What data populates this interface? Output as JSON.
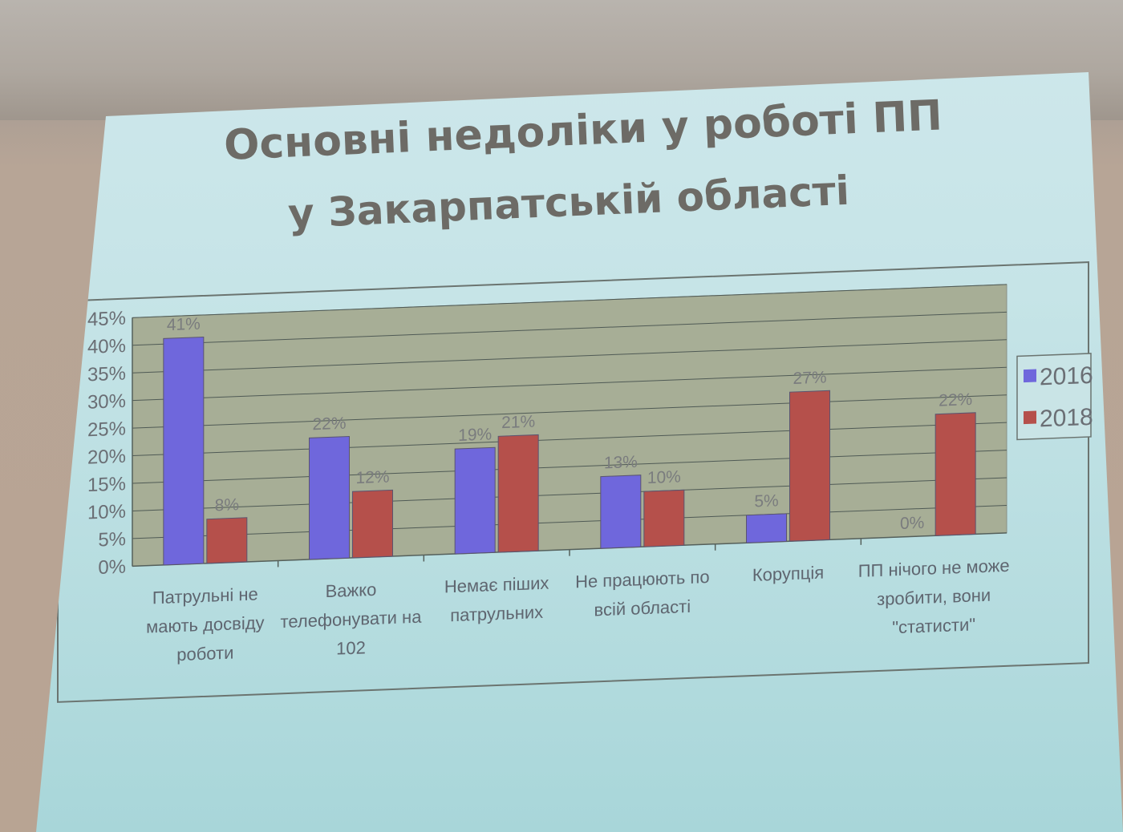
{
  "slide": {
    "title_line1": "Основні недоліки у роботі ПП",
    "title_line2": "у Закарпатській області"
  },
  "chart_data": {
    "type": "bar",
    "categories": [
      [
        "Патрульні не",
        "мають досвіду",
        "роботи"
      ],
      [
        "Важко",
        "телефонувати на",
        "102"
      ],
      [
        "Немає піших",
        "патрульних"
      ],
      [
        "Не працюють по",
        "всій області"
      ],
      [
        "Корупція"
      ],
      [
        "ПП нічого не може",
        "зробити, вони",
        "\"статисти\""
      ]
    ],
    "series": [
      {
        "name": "2016",
        "color": "#6f67dc",
        "values": [
          41,
          22,
          19,
          13,
          5,
          0
        ],
        "labels": [
          "41%",
          "22%",
          "19%",
          "13%",
          "5%",
          "0%"
        ]
      },
      {
        "name": "2018",
        "color": "#b5504b",
        "values": [
          8,
          12,
          21,
          10,
          27,
          22
        ],
        "labels": [
          "8%",
          "12%",
          "21%",
          "10%",
          "27%",
          "22%"
        ]
      }
    ],
    "y_ticks": [
      "0%",
      "5%",
      "10%",
      "15%",
      "20%",
      "25%",
      "30%",
      "35%",
      "40%",
      "45%"
    ],
    "ylim": [
      0,
      45
    ],
    "grid": true,
    "legend": "right",
    "plot_color": "#a7ae96"
  }
}
